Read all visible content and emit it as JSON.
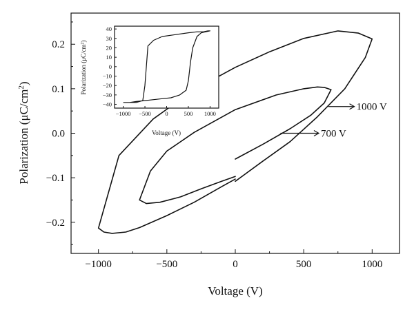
{
  "chart_data": [
    {
      "type": "line",
      "title": "",
      "xlabel": "Voltage (V)",
      "ylabel": "Polarization (μC/cm2)",
      "xlim": [
        -1200,
        1200
      ],
      "ylim": [
        -0.27,
        0.27
      ],
      "grid": false,
      "x_ticks": [
        -1000,
        -500,
        0,
        500,
        1000
      ],
      "x_tick_labels": [
        "−1000",
        "−500",
        "0",
        "500",
        "1000"
      ],
      "y_ticks": [
        0.2,
        0.1,
        0.0,
        -0.1,
        -0.2
      ],
      "y_tick_labels": [
        "0.2",
        "0.1",
        "0.0",
        "−0.1",
        "−0.2"
      ],
      "annotations": [
        {
          "text": "1000 V",
          "arrow_from": [
            680,
            0.06
          ],
          "arrow_to": [
            870,
            0.06
          ]
        },
        {
          "text": "700 V",
          "arrow_from": [
            330,
            0.0
          ],
          "arrow_to": [
            610,
            0.0
          ]
        }
      ],
      "series": [
        {
          "name": "1000 V",
          "x": [
            0,
            200,
            400,
            600,
            800,
            950,
            1000,
            900,
            750,
            500,
            250,
            0,
            -300,
            -600,
            -850,
            -1000,
            -960,
            -900,
            -800,
            -700,
            -500,
            -300,
            -100,
            0
          ],
          "y": [
            -0.108,
            -0.063,
            -0.019,
            0.037,
            0.1,
            0.17,
            0.212,
            0.225,
            0.23,
            0.213,
            0.183,
            0.148,
            0.098,
            0.032,
            -0.05,
            -0.213,
            -0.222,
            -0.225,
            -0.222,
            -0.212,
            -0.185,
            -0.155,
            -0.12,
            -0.103
          ]
        },
        {
          "name": "700 V",
          "x": [
            0,
            200,
            400,
            550,
            650,
            700,
            650,
            600,
            500,
            300,
            0,
            -300,
            -500,
            -620,
            -700,
            -650,
            -550,
            -400,
            -250,
            -100,
            0
          ],
          "y": [
            -0.058,
            -0.025,
            0.01,
            0.04,
            0.068,
            0.098,
            0.103,
            0.104,
            0.1,
            0.086,
            0.053,
            0.002,
            -0.04,
            -0.085,
            -0.15,
            -0.158,
            -0.155,
            -0.143,
            -0.125,
            -0.108,
            -0.097
          ]
        }
      ]
    },
    {
      "type": "line",
      "title": "",
      "xlabel": "Voltage (V)",
      "ylabel": "Polarization (μC/cm2)",
      "xlim": [
        -1200,
        1200
      ],
      "ylim": [
        -44,
        43
      ],
      "grid": false,
      "x_ticks": [
        -1000,
        -500,
        0,
        500,
        1000
      ],
      "x_tick_labels": [
        "−1000",
        "−500",
        "0",
        "500",
        "1000"
      ],
      "y_ticks": [
        40,
        30,
        20,
        10,
        0,
        -10,
        -20,
        -30,
        -40
      ],
      "y_tick_labels": [
        "40",
        "30",
        "20",
        "10",
        "0",
        "−10",
        "−20",
        "−30",
        "−40"
      ],
      "series": [
        {
          "name": "",
          "x": [
            -1000,
            -700,
            -550,
            -500,
            -430,
            -300,
            -100,
            200,
            500,
            700,
            850,
            950,
            1000,
            800,
            700,
            600,
            550,
            500,
            450,
            300,
            100,
            -100,
            -300,
            -500,
            -700,
            -850,
            -1000
          ],
          "y": [
            -38,
            -38,
            -36,
            -20,
            22,
            28,
            32,
            34,
            36,
            37,
            37,
            38,
            38,
            36,
            32,
            20,
            5,
            -15,
            -25,
            -30,
            -33,
            -34,
            -35,
            -36,
            -37,
            -38,
            -38
          ]
        }
      ]
    }
  ],
  "labels": {
    "main_ann_1000": "1000 V",
    "main_ann_700": "700 V"
  }
}
